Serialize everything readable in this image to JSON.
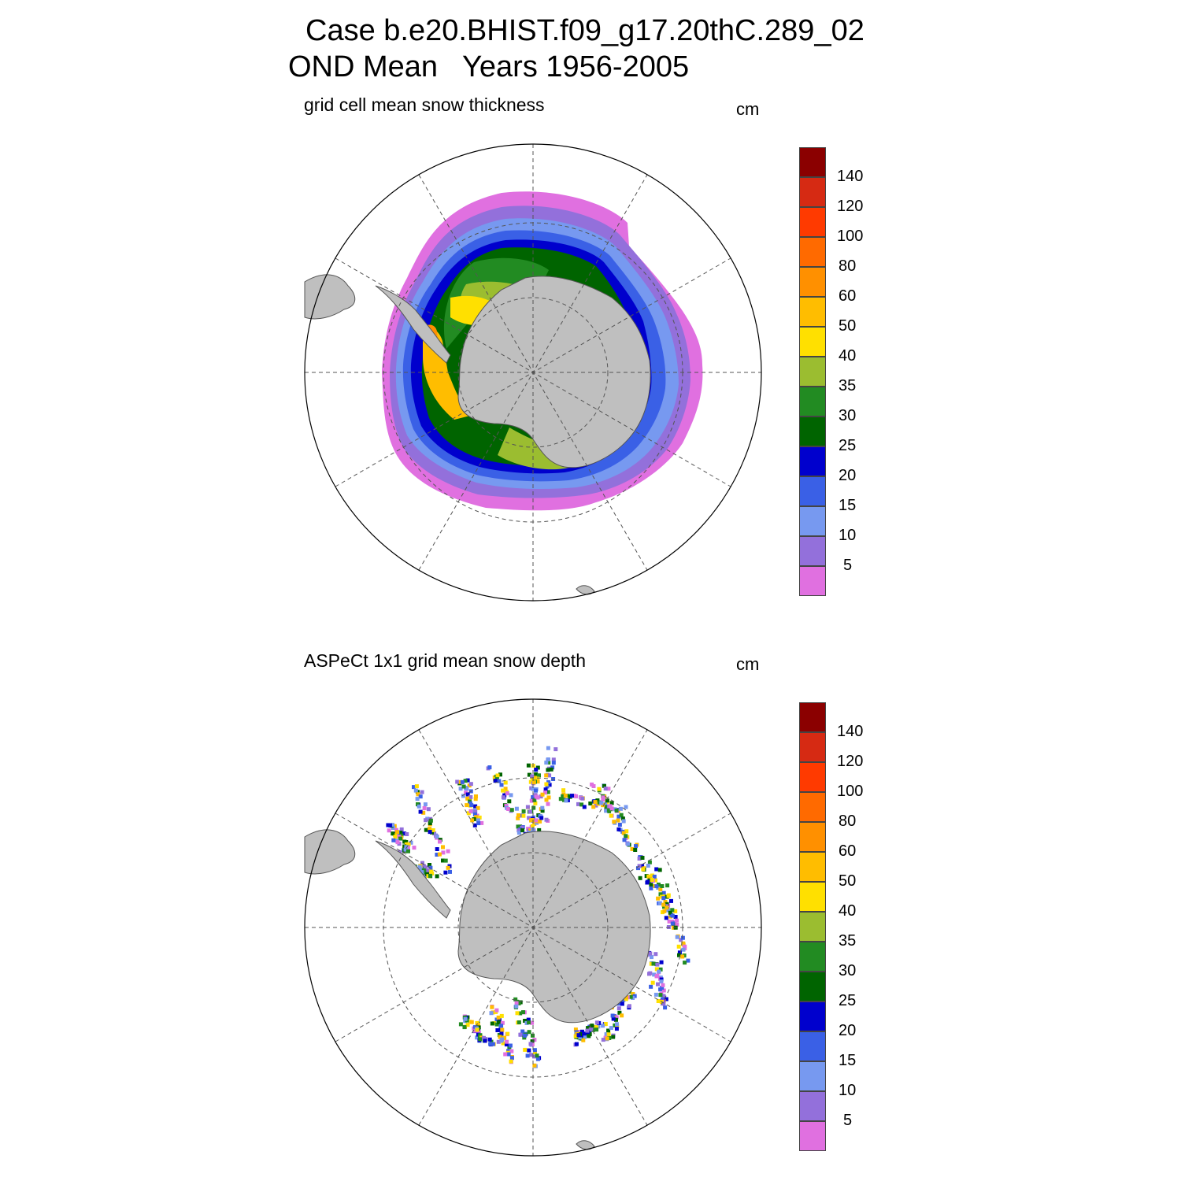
{
  "header": {
    "line1": "Case b.e20.BHIST.f09_g17.20thC.289_02",
    "line2": "OND Mean   Years 1956-2005"
  },
  "panels": [
    {
      "title": "grid cell mean snow thickness",
      "units": "cm"
    },
    {
      "title": "ASPeCt 1x1 grid mean snow depth",
      "units": "cm"
    }
  ],
  "colorbar": {
    "labels": [
      "140",
      "120",
      "100",
      "80",
      "60",
      "50",
      "40",
      "35",
      "30",
      "25",
      "20",
      "15",
      "10",
      "5"
    ],
    "colors": [
      "#8b0000",
      "#d62a13",
      "#ff3a00",
      "#ff6a00",
      "#ff9000",
      "#ffbd00",
      "#ffe000",
      "#9bbd30",
      "#228b22",
      "#006400",
      "#0000cd",
      "#3a60e6",
      "#7799f0",
      "#9370db",
      "#e070e0"
    ]
  },
  "land_color": "#bfbfbf"
}
